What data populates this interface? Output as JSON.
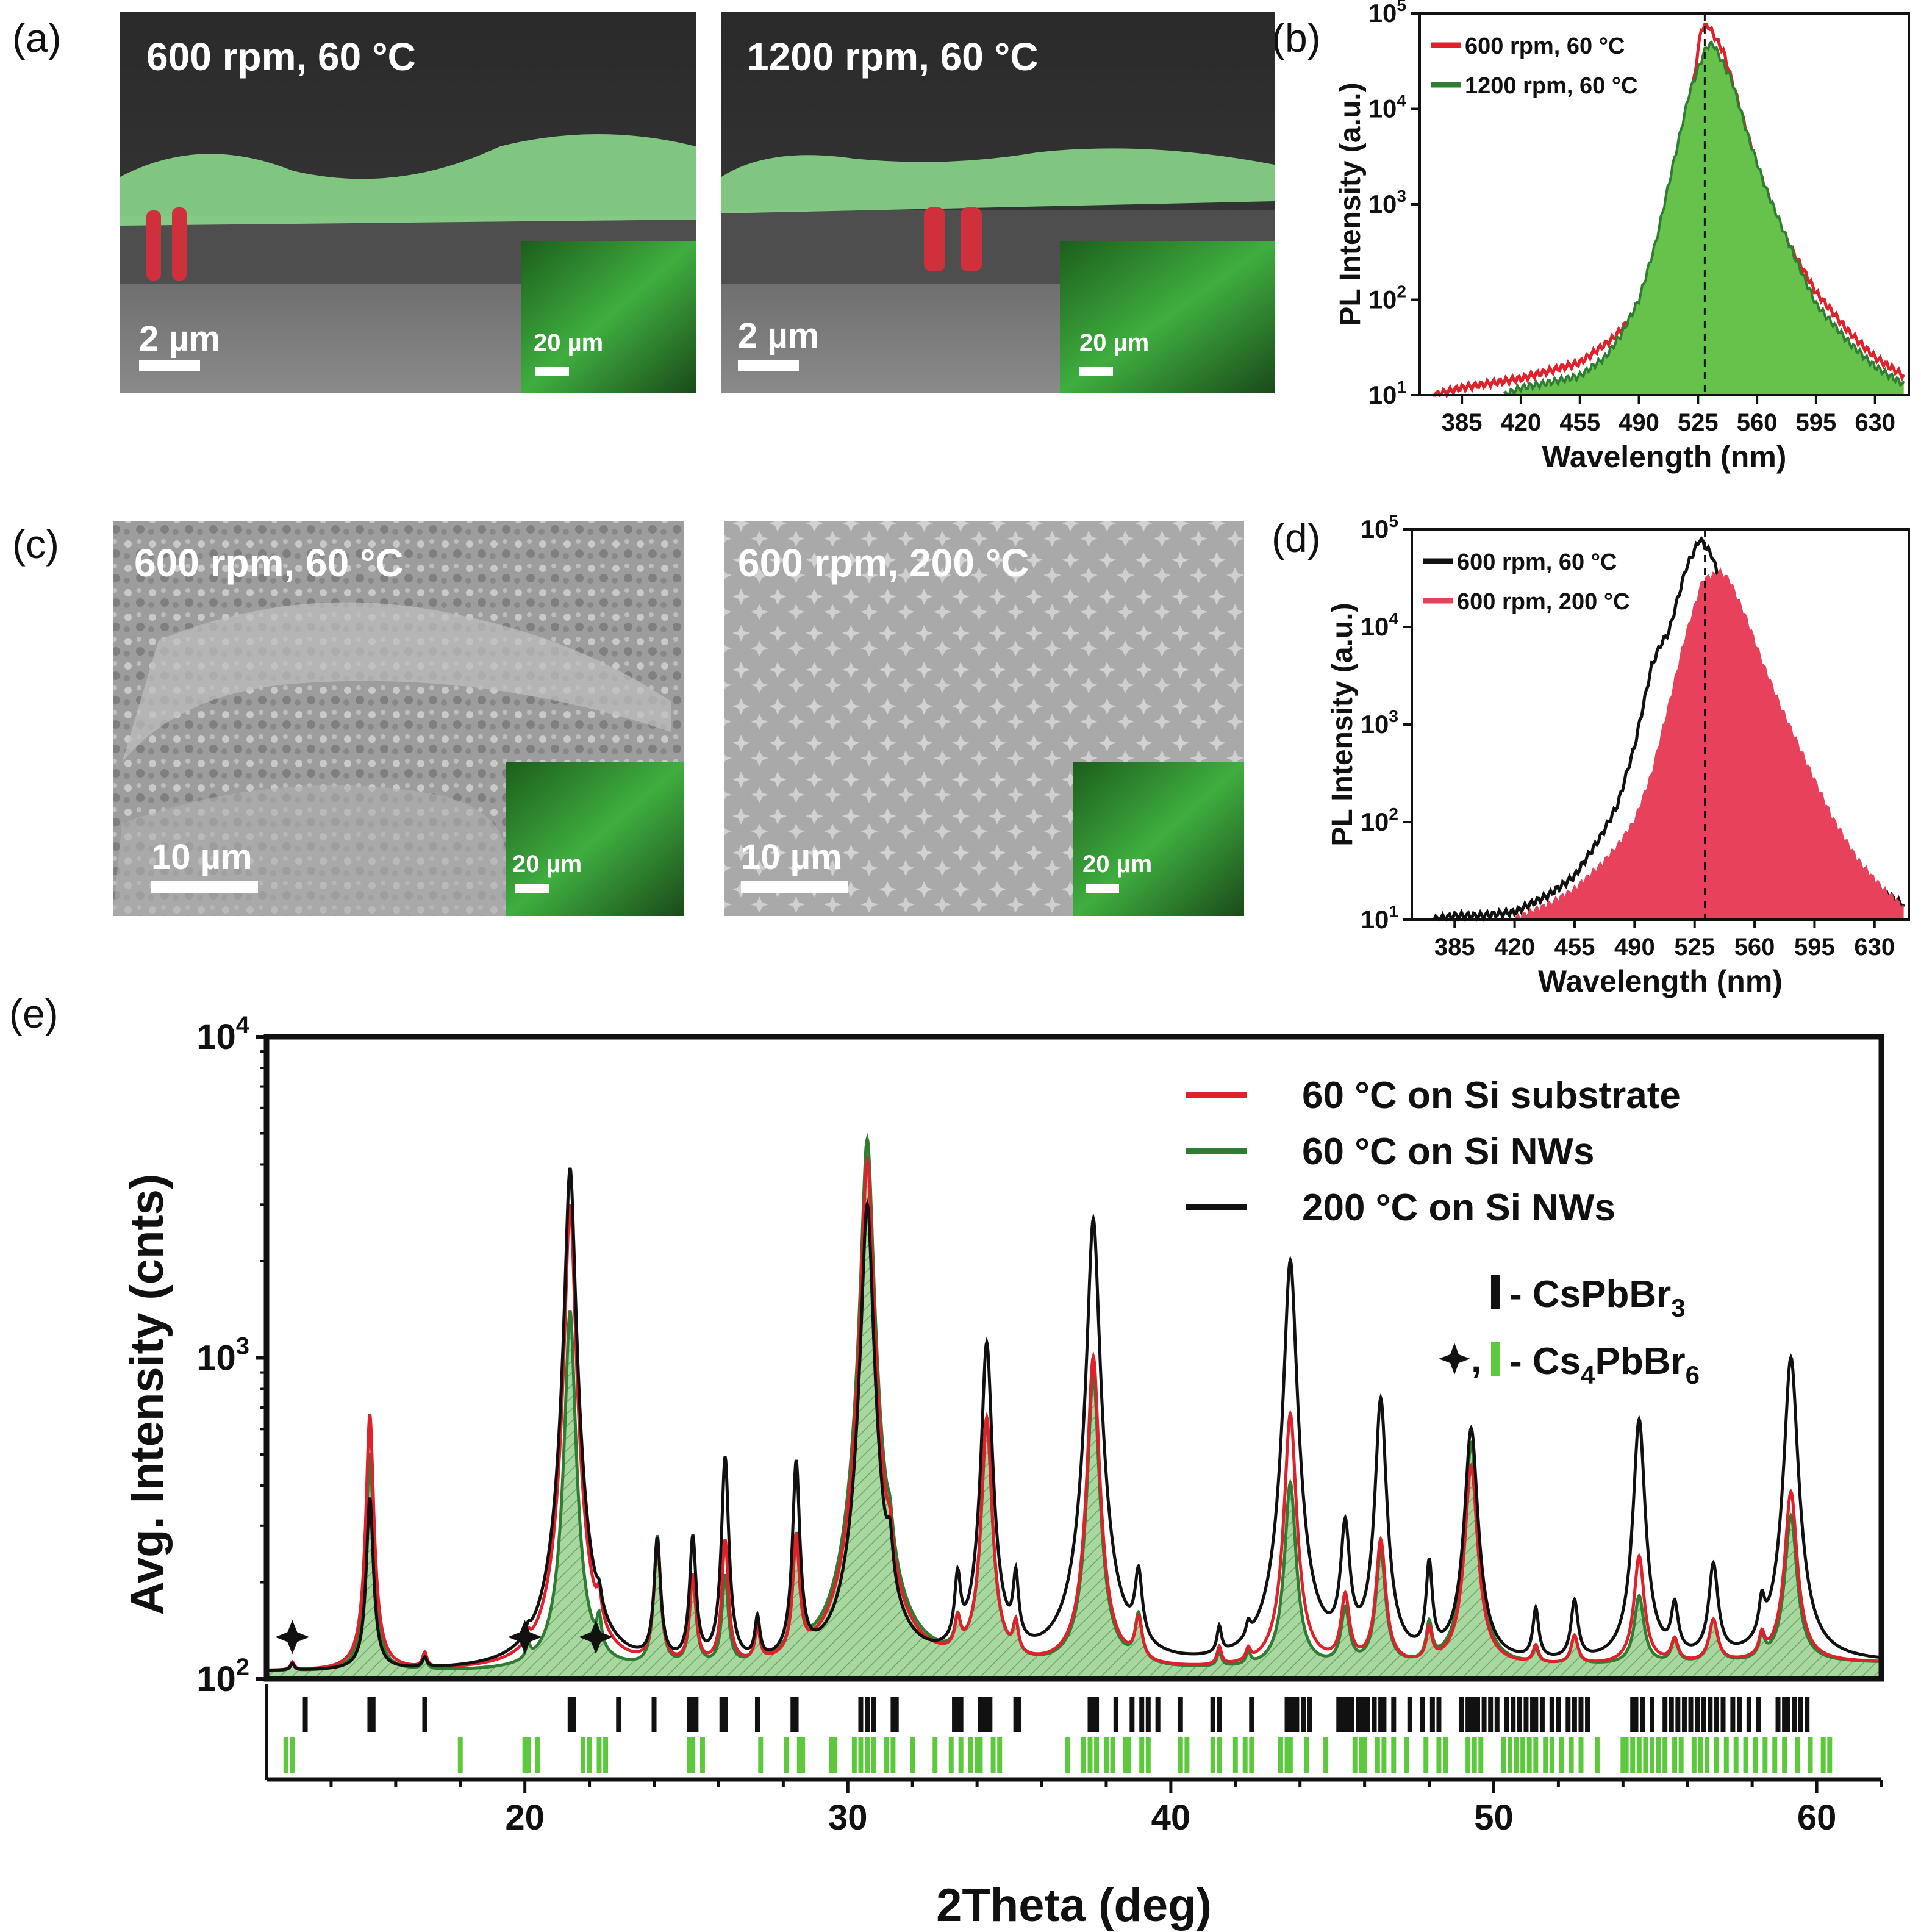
{
  "panel_labels": {
    "a": "(a)",
    "b": "(b)",
    "c": "(c)",
    "d": "(d)",
    "e": "(e)"
  },
  "panel_a": {
    "left": {
      "caption": "600 rpm, 60 °C",
      "scale_main": "2 µm",
      "scale_inset": "20 µm"
    },
    "right": {
      "caption": "1200 rpm, 60 °C",
      "scale_main": "2 µm",
      "scale_inset": "20 µm"
    }
  },
  "panel_c": {
    "left": {
      "caption": "600 rpm, 60 °C",
      "scale_main": "10 µm",
      "scale_inset": "20 µm"
    },
    "right": {
      "caption": "600 rpm, 200 °C",
      "scale_main": "10 µm",
      "scale_inset": "20 µm"
    }
  },
  "colors": {
    "red": "#e0202a",
    "green": "#2e7d32",
    "green_fill": "#66c24a",
    "crimson_fill": "#e8415c",
    "black": "#111111",
    "hatch_fill": "#a8d8a0",
    "ref_green": "#5cc93c"
  },
  "chart_data": [
    {
      "id": "b",
      "type": "area",
      "ylabel": "PL Intensity (a.u.)",
      "xlabel": "Wavelength (nm)",
      "xlim": [
        360,
        650
      ],
      "x_ticks": [
        385,
        420,
        455,
        490,
        525,
        560,
        595,
        630
      ],
      "y_scale": "log",
      "ylim": [
        10,
        100000
      ],
      "y_ticks": [
        {
          "v": 10,
          "base": "10",
          "exp": "1"
        },
        {
          "v": 100,
          "base": "10",
          "exp": "2"
        },
        {
          "v": 1000,
          "base": "10",
          "exp": "3"
        },
        {
          "v": 10000,
          "base": "10",
          "exp": "4"
        },
        {
          "v": 100000,
          "base": "10",
          "exp": "5"
        }
      ],
      "dashed_x": 529,
      "legend_position": "top-left",
      "series": [
        {
          "name": "600 rpm, 60 °C",
          "style": "line",
          "color": "#e0202a",
          "x": [
            368,
            385,
            420,
            455,
            475,
            490,
            500,
            510,
            520,
            527,
            531,
            540,
            550,
            560,
            575,
            595,
            615,
            630,
            647
          ],
          "y": [
            10,
            12,
            15,
            22,
            40,
            80,
            200,
            1000,
            10000,
            70000,
            75000,
            40000,
            10000,
            2500,
            500,
            120,
            45,
            25,
            16
          ]
        },
        {
          "name": "1200 rpm, 60 °C",
          "style": "filled",
          "color": "#2e7d32",
          "x": [
            410,
            420,
            440,
            455,
            470,
            480,
            490,
            500,
            510,
            520,
            530,
            534,
            545,
            555,
            565,
            580,
            595,
            615,
            630,
            647
          ],
          "y": [
            10,
            12,
            14,
            16,
            25,
            45,
            100,
            400,
            2500,
            15000,
            45000,
            48000,
            20000,
            5000,
            1500,
            350,
            90,
            35,
            20,
            13
          ]
        }
      ]
    },
    {
      "id": "d",
      "type": "area",
      "ylabel": "PL Intensity (a.u.)",
      "xlabel": "Wavelength (nm)",
      "xlim": [
        360,
        650
      ],
      "x_ticks": [
        385,
        420,
        455,
        490,
        525,
        560,
        595,
        630
      ],
      "y_scale": "log",
      "ylim": [
        10,
        100000
      ],
      "y_ticks": [
        {
          "v": 10,
          "base": "10",
          "exp": "1"
        },
        {
          "v": 100,
          "base": "10",
          "exp": "2"
        },
        {
          "v": 1000,
          "base": "10",
          "exp": "3"
        },
        {
          "v": 10000,
          "base": "10",
          "exp": "4"
        },
        {
          "v": 100000,
          "base": "10",
          "exp": "5"
        }
      ],
      "dashed_x": 531,
      "legend_position": "top-left",
      "series": [
        {
          "name": "600 rpm, 60 °C",
          "style": "line",
          "color": "#111111",
          "x": [
            372,
            385,
            400,
            420,
            440,
            455,
            470,
            480,
            490,
            500,
            505,
            510,
            520,
            528,
            535,
            545,
            555,
            565,
            580,
            595,
            615,
            630,
            647
          ],
          "y": [
            10,
            11,
            11,
            12,
            18,
            28,
            70,
            150,
            600,
            4000,
            6500,
            9000,
            40000,
            80000,
            55000,
            15000,
            4000,
            1200,
            300,
            90,
            35,
            22,
            14
          ]
        },
        {
          "name": "600 rpm, 200 °C",
          "style": "filled",
          "color": "#e8415c",
          "x": [
            420,
            440,
            455,
            470,
            480,
            490,
            500,
            510,
            520,
            530,
            540,
            545,
            555,
            565,
            575,
            590,
            605,
            620,
            635,
            647
          ],
          "y": [
            10,
            14,
            20,
            35,
            55,
            100,
            300,
            1500,
            8000,
            30000,
            35000,
            30000,
            12000,
            4000,
            1500,
            400,
            110,
            40,
            20,
            13
          ]
        }
      ]
    },
    {
      "id": "e",
      "type": "area",
      "ylabel": "Avg. Intensity (cnts)",
      "xlabel": "2Theta (deg)",
      "xlim": [
        12,
        62
      ],
      "x_ticks": [
        20,
        30,
        40,
        50,
        60
      ],
      "y_scale": "log",
      "ylim": [
        100,
        10000
      ],
      "y_ticks": [
        {
          "v": 100,
          "base": "10",
          "exp": "2"
        },
        {
          "v": 1000,
          "base": "10",
          "exp": "3"
        },
        {
          "v": 10000,
          "base": "10",
          "exp": "4"
        }
      ],
      "legend_position": "top-right",
      "baseline": {
        "x": [
          12,
          20,
          25,
          30,
          35,
          40,
          45,
          50,
          55,
          60,
          62
        ],
        "y": [
          105,
          104,
          103,
          103,
          104,
          105,
          106,
          108,
          110,
          112,
          112
        ]
      },
      "peaks": [
        {
          "c": 12.8,
          "w": 0.07,
          "r": 6,
          "g": 6,
          "k": 5
        },
        {
          "c": 15.2,
          "w": 0.1,
          "r": 560,
          "g": 400,
          "k": 260
        },
        {
          "c": 16.9,
          "w": 0.08,
          "r": 12,
          "g": 10,
          "k": 8
        },
        {
          "c": 20.1,
          "w": 0.08,
          "r": 10,
          "g": 12,
          "k": 8
        },
        {
          "c": 21.4,
          "w": 0.13,
          "r": 2900,
          "g": 1300,
          "k": 3800
        },
        {
          "c": 22.3,
          "w": 0.08,
          "r": 33,
          "g": 30,
          "k": 20
        },
        {
          "c": 24.1,
          "w": 0.1,
          "r": 160,
          "g": 170,
          "k": 160
        },
        {
          "c": 25.2,
          "w": 0.1,
          "r": 100,
          "g": 100,
          "k": 165
        },
        {
          "c": 26.2,
          "w": 0.1,
          "r": 160,
          "g": 100,
          "k": 380
        },
        {
          "c": 27.2,
          "w": 0.09,
          "r": 30,
          "g": 35,
          "k": 40
        },
        {
          "c": 28.4,
          "w": 0.1,
          "r": 160,
          "g": 160,
          "k": 360
        },
        {
          "c": 30.6,
          "w": 0.15,
          "r": 4000,
          "g": 4700,
          "k": 2900
        },
        {
          "c": 31.3,
          "w": 0.1,
          "r": 60,
          "g": 60,
          "k": 80
        },
        {
          "c": 33.4,
          "w": 0.1,
          "r": 30,
          "g": 30,
          "k": 80
        },
        {
          "c": 34.3,
          "w": 0.14,
          "r": 540,
          "g": 520,
          "k": 1000
        },
        {
          "c": 35.2,
          "w": 0.09,
          "r": 30,
          "g": 30,
          "k": 80
        },
        {
          "c": 37.6,
          "w": 0.15,
          "r": 900,
          "g": 780,
          "k": 2600
        },
        {
          "c": 39.0,
          "w": 0.12,
          "r": 40,
          "g": 45,
          "k": 85
        },
        {
          "c": 41.5,
          "w": 0.08,
          "r": 15,
          "g": 12,
          "k": 25
        },
        {
          "c": 42.4,
          "w": 0.08,
          "r": 10,
          "g": 10,
          "k": 15
        },
        {
          "c": 43.7,
          "w": 0.16,
          "r": 560,
          "g": 300,
          "k": 1900
        },
        {
          "c": 45.4,
          "w": 0.14,
          "r": 70,
          "g": 55,
          "k": 180
        },
        {
          "c": 46.5,
          "w": 0.15,
          "r": 160,
          "g": 140,
          "k": 630
        },
        {
          "c": 48.0,
          "w": 0.1,
          "r": 30,
          "g": 35,
          "k": 110
        },
        {
          "c": 49.3,
          "w": 0.18,
          "r": 350,
          "g": 430,
          "k": 490
        },
        {
          "c": 51.3,
          "w": 0.1,
          "r": 15,
          "g": 12,
          "k": 50
        },
        {
          "c": 52.5,
          "w": 0.12,
          "r": 25,
          "g": 25,
          "k": 60
        },
        {
          "c": 54.5,
          "w": 0.16,
          "r": 130,
          "g": 70,
          "k": 530
        },
        {
          "c": 55.6,
          "w": 0.12,
          "r": 20,
          "g": 20,
          "k": 50
        },
        {
          "c": 56.8,
          "w": 0.15,
          "r": 40,
          "g": 40,
          "k": 110
        },
        {
          "c": 58.3,
          "w": 0.1,
          "r": 20,
          "g": 20,
          "k": 40
        },
        {
          "c": 59.2,
          "w": 0.18,
          "r": 270,
          "g": 210,
          "k": 890
        }
      ],
      "series": [
        {
          "name": "60 °C on Si substrate",
          "key": "r",
          "color": "#e0202a"
        },
        {
          "name": "60 °C on Si NWs",
          "key": "g",
          "color": "#2e7d32",
          "style": "hatched"
        },
        {
          "name": "200 °C on Si NWs",
          "key": "k",
          "color": "#111111"
        }
      ],
      "star_markers": [
        12.8,
        20.0,
        22.2
      ],
      "ref_legend": {
        "cspbbr3": {
          "prefix": "- CsPbBr",
          "sub": "3"
        },
        "cs4pbbr6": {
          "prefix": "- Cs",
          "sub1": "4",
          "mid": "PbBr",
          "sub2": "6"
        },
        "star_sep": ","
      },
      "ref_ticks_cspbbr3": [
        13.2,
        15.2,
        15.3,
        16.9,
        21.4,
        21.5,
        22.9,
        24.0,
        25.1,
        25.2,
        25.3,
        26.1,
        26.2,
        27.2,
        28.3,
        28.4,
        30.4,
        30.6,
        30.8,
        31.4,
        31.5,
        33.3,
        33.4,
        33.5,
        34.1,
        34.2,
        34.3,
        34.4,
        35.2,
        35.3,
        37.5,
        37.6,
        37.7,
        38.3,
        38.8,
        39.1,
        39.3,
        39.6,
        40.3,
        41.3,
        41.5,
        42.5,
        43.6,
        43.7,
        43.8,
        43.9,
        44.1,
        44.3,
        45.2,
        45.3,
        45.4,
        45.5,
        45.6,
        45.8,
        45.9,
        46.0,
        46.1,
        46.3,
        46.5,
        46.6,
        46.9,
        47.4,
        47.8,
        48.1,
        48.3,
        49.0,
        49.2,
        49.3,
        49.4,
        49.5,
        49.7,
        49.9,
        50.1,
        50.4,
        50.6,
        50.8,
        51.0,
        51.2,
        51.3,
        51.5,
        51.8,
        52.0,
        52.3,
        52.5,
        52.7,
        52.9,
        54.3,
        54.4,
        54.6,
        54.9,
        55.3,
        55.5,
        55.7,
        55.9,
        56.1,
        56.3,
        56.5,
        56.7,
        56.9,
        57.1,
        57.4,
        57.6,
        57.9,
        58.2,
        58.8,
        59.0,
        59.1,
        59.3,
        59.5,
        59.7
      ],
      "ref_ticks_cs4pbbr6": [
        12.6,
        12.8,
        18.0,
        20.0,
        20.1,
        20.4,
        21.8,
        22.0,
        22.3,
        22.5,
        25.1,
        25.2,
        25.5,
        27.3,
        28.1,
        28.5,
        28.6,
        29.5,
        29.6,
        30.2,
        30.4,
        30.6,
        30.8,
        31.2,
        31.4,
        32.0,
        32.7,
        33.2,
        33.5,
        33.8,
        34.0,
        34.1,
        34.5,
        34.7,
        36.8,
        37.3,
        37.5,
        37.7,
        38.0,
        38.2,
        38.6,
        38.7,
        39.1,
        39.3,
        40.3,
        40.5,
        41.3,
        41.5,
        42.0,
        42.3,
        42.5,
        43.4,
        43.6,
        43.7,
        44.2,
        44.8,
        45.7,
        45.9,
        46.0,
        46.4,
        46.6,
        46.9,
        47.3,
        47.9,
        48.3,
        48.5,
        49.2,
        49.4,
        49.6,
        50.3,
        50.5,
        50.7,
        50.9,
        51.1,
        51.3,
        51.6,
        51.8,
        52.1,
        52.4,
        52.7,
        53.2,
        54.0,
        54.1,
        54.3,
        54.5,
        54.7,
        54.9,
        55.1,
        55.3,
        55.6,
        55.8,
        56.2,
        56.4,
        56.6,
        56.9,
        57.2,
        57.5,
        57.8,
        58.1,
        58.4,
        58.7,
        59.0,
        59.4,
        59.8,
        60.2,
        60.4
      ]
    }
  ]
}
